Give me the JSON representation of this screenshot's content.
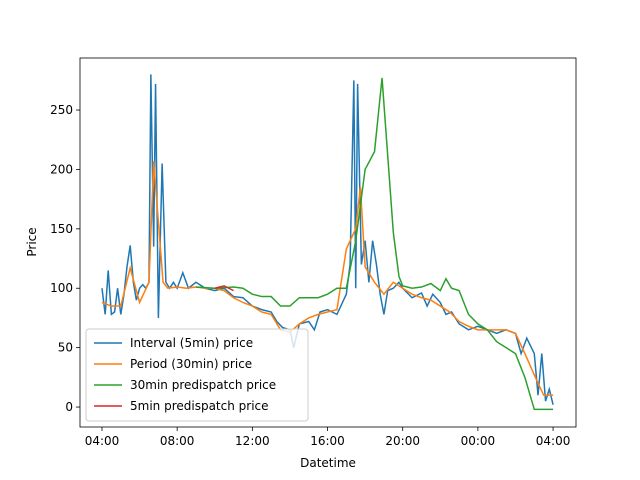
{
  "chart_data": {
    "type": "line",
    "xlabel": "Datetime",
    "ylabel": "Price",
    "xlim": [
      2.83,
      29.22
    ],
    "ylim": [
      -16.8,
      293.8
    ],
    "xticks": [
      {
        "value": 4,
        "label": "04:00"
      },
      {
        "value": 8,
        "label": "08:00"
      },
      {
        "value": 12,
        "label": "12:00"
      },
      {
        "value": 16,
        "label": "16:00"
      },
      {
        "value": 20,
        "label": "20:00"
      },
      {
        "value": 24,
        "label": "00:00"
      },
      {
        "value": 28,
        "label": "04:00"
      }
    ],
    "yticks": [
      0,
      50,
      100,
      150,
      200,
      250
    ],
    "legend": "lower left",
    "series": [
      {
        "name": "Interval (5min) price",
        "color": "#1f77b4",
        "x": [
          4.0,
          4.17,
          4.33,
          4.5,
          4.67,
          4.83,
          5.0,
          5.17,
          5.33,
          5.5,
          5.67,
          5.83,
          6.0,
          6.17,
          6.33,
          6.5,
          6.6,
          6.75,
          6.85,
          7.0,
          7.2,
          7.4,
          7.6,
          7.8,
          8.0,
          8.3,
          8.6,
          9.0,
          9.5,
          10.0,
          10.5,
          11.0,
          11.5,
          12.0,
          12.5,
          13.0,
          13.3,
          13.6,
          14.0,
          14.2,
          14.5,
          15.0,
          15.3,
          15.6,
          16.0,
          16.5,
          17.0,
          17.2,
          17.4,
          17.5,
          17.6,
          17.8,
          18.0,
          18.2,
          18.4,
          18.6,
          18.8,
          19.0,
          19.2,
          19.5,
          19.8,
          20.0,
          20.5,
          21.0,
          21.3,
          21.6,
          22.0,
          22.3,
          22.6,
          23.0,
          23.5,
          24.0,
          24.5,
          25.0,
          25.5,
          26.0,
          26.3,
          26.6,
          27.0,
          27.2,
          27.4,
          27.6,
          27.8,
          28.0
        ],
        "values": [
          100,
          78,
          115,
          78,
          80,
          100,
          78,
          95,
          118,
          136,
          105,
          90,
          100,
          103,
          100,
          105,
          280,
          135,
          272,
          75,
          205,
          105,
          100,
          105,
          100,
          113,
          100,
          105,
          100,
          98,
          100,
          93,
          92,
          85,
          82,
          80,
          72,
          67,
          65,
          50,
          70,
          72,
          65,
          80,
          82,
          78,
          95,
          120,
          275,
          100,
          272,
          120,
          140,
          105,
          140,
          120,
          95,
          78,
          98,
          100,
          105,
          100,
          92,
          96,
          85,
          95,
          88,
          78,
          80,
          70,
          65,
          68,
          65,
          62,
          65,
          62,
          45,
          58,
          45,
          10,
          45,
          5,
          15,
          2
        ]
      },
      {
        "name": "Period (30min) price",
        "color": "#ff7f0e",
        "x": [
          4.0,
          4.5,
          5.0,
          5.5,
          6.0,
          6.5,
          6.75,
          7.25,
          7.5,
          8.0,
          8.5,
          9.0,
          9.5,
          10.0,
          10.5,
          11.0,
          11.5,
          12.0,
          12.5,
          13.0,
          13.5,
          14.0,
          14.5,
          15.0,
          15.5,
          16.0,
          16.5,
          17.0,
          17.5,
          17.75,
          18.0,
          18.5,
          19.0,
          19.5,
          20.0,
          20.5,
          21.0,
          21.5,
          22.0,
          22.5,
          23.0,
          23.5,
          24.0,
          24.5,
          25.0,
          25.5,
          26.0,
          26.5,
          27.0,
          27.5,
          28.0
        ],
        "values": [
          88,
          85,
          85,
          117,
          88,
          105,
          207,
          105,
          100,
          101,
          100,
          101,
          100,
          100,
          98,
          92,
          88,
          85,
          80,
          78,
          65,
          63,
          70,
          75,
          78,
          80,
          82,
          133,
          150,
          185,
          118,
          105,
          95,
          105,
          100,
          95,
          92,
          90,
          85,
          80,
          72,
          68,
          65,
          65,
          65,
          65,
          62,
          45,
          27,
          10,
          10
        ]
      },
      {
        "name": "30min predispatch price",
        "color": "#2ca02c",
        "x": [
          9.0,
          10.0,
          11.0,
          11.5,
          12.0,
          12.5,
          13.0,
          13.5,
          14.0,
          14.5,
          15.0,
          15.5,
          16.0,
          16.5,
          17.0,
          17.5,
          18.0,
          18.5,
          18.9,
          19.5,
          19.8,
          20.0,
          20.5,
          21.0,
          21.5,
          22.0,
          22.3,
          22.6,
          23.0,
          23.5,
          24.0,
          24.5,
          25.0,
          25.5,
          26.0,
          26.5,
          27.0,
          27.5,
          28.0
        ],
        "values": [
          101,
          100,
          101,
          100,
          95,
          93,
          93,
          85,
          85,
          92,
          92,
          92,
          95,
          100,
          100,
          140,
          200,
          215,
          277,
          147,
          110,
          102,
          100,
          101,
          104,
          98,
          108,
          100,
          98,
          78,
          70,
          65,
          55,
          50,
          45,
          25,
          -2,
          -2,
          -2
        ]
      },
      {
        "name": "5min predispatch price",
        "color": "#d62728",
        "x": [
          10.0,
          10.5,
          11.0
        ],
        "values": [
          100,
          102,
          98
        ]
      }
    ]
  }
}
